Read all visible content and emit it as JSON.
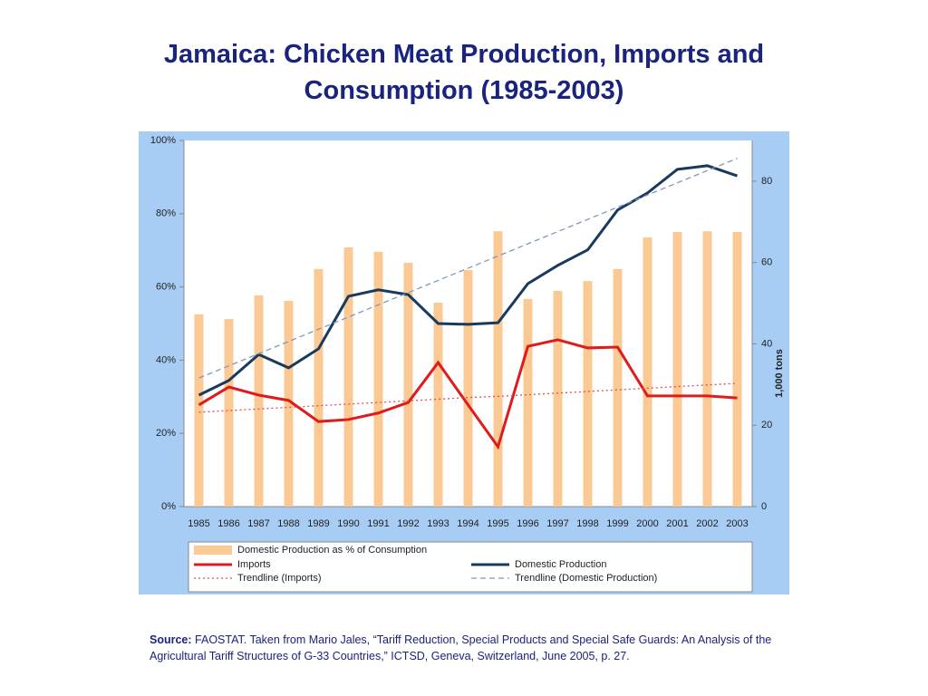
{
  "chart_data": {
    "type": "combo",
    "title": "Jamaica: Chicken Meat Production, Imports and Consumption (1985-2003)",
    "categories": [
      "1985",
      "1986",
      "1987",
      "1988",
      "1989",
      "1990",
      "1991",
      "1992",
      "1993",
      "1994",
      "1995",
      "1996",
      "1997",
      "1998",
      "1999",
      "2000",
      "2001",
      "2002",
      "2003"
    ],
    "y2label": "1,000 tons",
    "ylim": [
      0,
      100
    ],
    "yticks": [
      {
        "value": 0,
        "label": "0%"
      },
      {
        "value": 20,
        "label": "20%"
      },
      {
        "value": 40,
        "label": "40%"
      },
      {
        "value": 60,
        "label": "60%"
      },
      {
        "value": 80,
        "label": "80%"
      },
      {
        "value": 100,
        "label": "100%"
      }
    ],
    "y2lim": [
      0,
      90
    ],
    "y2ticks": [
      0,
      20,
      40,
      60,
      80
    ],
    "series": [
      {
        "name": "Domestic Production as % of Consumption",
        "type": "bar",
        "axis": "y",
        "color": "#fbc994",
        "values": [
          52.5,
          51.2,
          57.7,
          56.2,
          64.9,
          70.8,
          69.6,
          66.6,
          55.7,
          64.6,
          75.2,
          56.7,
          58.9,
          61.6,
          64.9,
          73.5,
          75,
          75.2,
          75
        ]
      },
      {
        "name": "Imports",
        "type": "line",
        "axis": "y2",
        "color": "#e01b1b",
        "dash": "solid",
        "values": [
          25,
          29.4,
          27.4,
          26.1,
          20.9,
          21.4,
          23,
          25.6,
          35.4,
          25,
          14.7,
          39.4,
          41,
          39,
          39.2,
          27.2,
          27.2,
          27.2,
          26.7
        ]
      },
      {
        "name": "Trendline (Imports)",
        "type": "line",
        "axis": "y2",
        "color": "#d9534f",
        "dash": "dotted",
        "values": [
          23.2,
          23.6,
          24,
          24.4,
          24.8,
          25.2,
          25.6,
          26,
          26.4,
          26.8,
          27.1,
          27.5,
          27.9,
          28.3,
          28.7,
          29.1,
          29.5,
          29.9,
          30.3
        ]
      },
      {
        "name": "Domestic Production",
        "type": "line",
        "axis": "y2",
        "color": "#173a5e",
        "dash": "solid",
        "values": [
          27.4,
          31,
          37.4,
          34.1,
          38.8,
          51.7,
          53.3,
          52.1,
          45,
          44.8,
          45.2,
          54.8,
          59.3,
          63.1,
          72.9,
          77.1,
          82.9,
          83.8,
          81.3
        ]
      },
      {
        "name": "Trendline (Domestic Production)",
        "type": "line",
        "axis": "y2",
        "color": "#8098b8",
        "dash": "dashed",
        "values": [
          31.6,
          34.6,
          37.6,
          40.6,
          43.6,
          46.6,
          49.6,
          52.6,
          55.6,
          58.6,
          61.6,
          64.6,
          67.6,
          70.6,
          73.6,
          76.6,
          79.6,
          82.6,
          85.6
        ]
      }
    ]
  },
  "source": {
    "label": "Source:",
    "text": "FAOSTAT. Taken from Mario Jales, “Tariff Reduction, Special Products and Special Safe Guards: An Analysis of the Agricultural Tariff Structures of G-33 Countries,” ICTSD, Geneva, Switzerland, June 2005, p. 27."
  }
}
